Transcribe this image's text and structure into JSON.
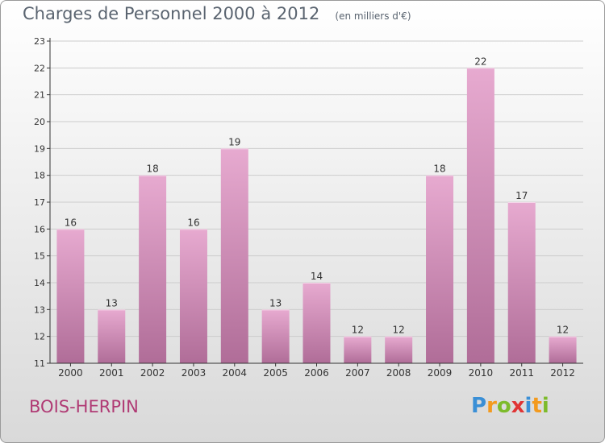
{
  "title": "Charges de Personnel 2000 à 2012",
  "subtitle": "(en milliers d'€)",
  "commune": "BOIS-HERPIN",
  "logo": {
    "letters": [
      {
        "ch": "P",
        "color": "#3a8fd6"
      },
      {
        "ch": "r",
        "color": "#f39a1e"
      },
      {
        "ch": "o",
        "color": "#7dbb2b"
      },
      {
        "ch": "x",
        "color": "#e03434"
      },
      {
        "ch": "i",
        "color": "#3a8fd6"
      },
      {
        "ch": "t",
        "color": "#f39a1e"
      },
      {
        "ch": "i",
        "color": "#7dbb2b"
      }
    ]
  },
  "colors": {
    "bar_top": "#e7aad0",
    "bar_bottom": "#b06d98",
    "axis": "#333333",
    "grid": "#cccccc",
    "text": "#333333"
  },
  "chart_data": {
    "type": "bar",
    "categories": [
      "2000",
      "2001",
      "2002",
      "2003",
      "2004",
      "2005",
      "2006",
      "2007",
      "2008",
      "2009",
      "2010",
      "2011",
      "2012"
    ],
    "values": [
      16,
      13,
      18,
      16,
      19,
      13,
      14,
      12,
      12,
      18,
      22,
      17,
      12
    ],
    "title": "Charges de Personnel 2000 à 2012",
    "ylim": [
      11,
      23
    ],
    "yticks": [
      11,
      12,
      13,
      14,
      15,
      16,
      17,
      18,
      19,
      20,
      21,
      22,
      23
    ],
    "grid": true,
    "legend": "none"
  }
}
